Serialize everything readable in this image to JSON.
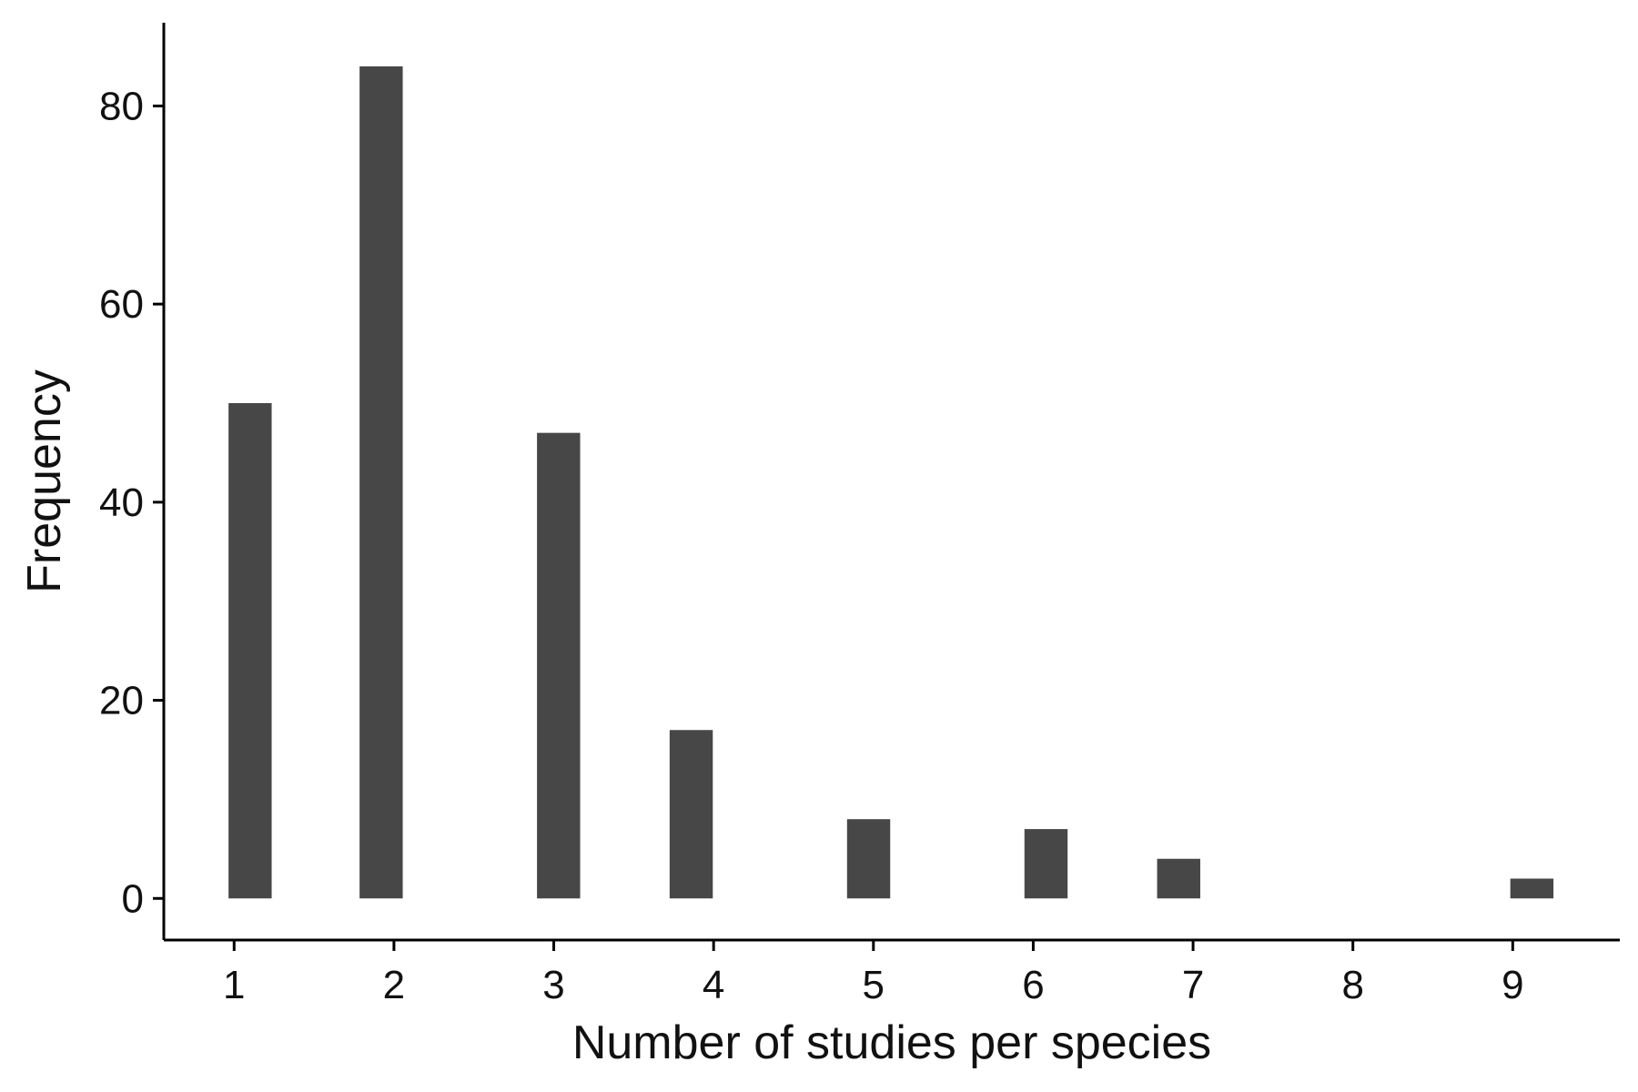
{
  "chart_data": {
    "type": "bar",
    "title": "",
    "xlabel": "Number of studies per species",
    "ylabel": "Frequency",
    "x": [
      1.1,
      1.92,
      3.03,
      3.86,
      4.97,
      6.08,
      6.91,
      9.12
    ],
    "values": [
      50,
      84,
      47,
      17,
      8,
      7,
      4,
      2
    ],
    "bar_width": 0.27,
    "xlim": [
      0.56,
      9.67
    ],
    "ylim": [
      -4.2,
      88.4
    ],
    "xticks": [
      1,
      2,
      3,
      4,
      5,
      6,
      7,
      8,
      9
    ],
    "yticks": [
      0,
      20,
      40,
      60,
      80
    ],
    "grid": false,
    "legend": "none",
    "bar_color": "#474747",
    "axis_color": "#000000"
  }
}
